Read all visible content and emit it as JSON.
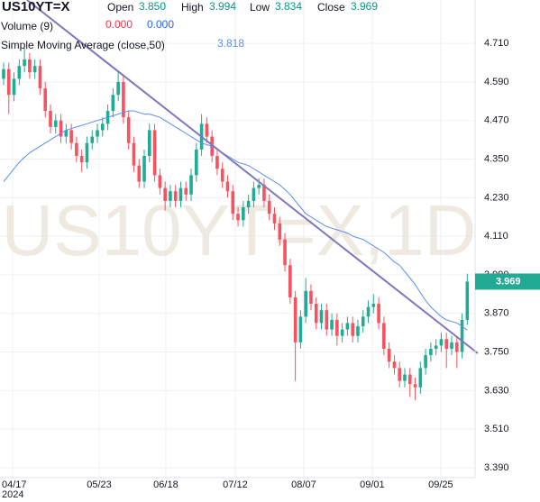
{
  "chart_data": {
    "type": "candlestick",
    "title": "US10YT=X",
    "watermark": "US10YT=X,1D",
    "header": {
      "open_label": "Open",
      "open": {
        "value": 3.85,
        "label": "3.850"
      },
      "high_label": "High",
      "high": 3.994,
      "low_label": "Low",
      "low": 3.834,
      "close_label": "Close",
      "close": 3.969,
      "volume_label": "Volume (9)",
      "volume_values": [
        {
          "value": 0,
          "label": "0.000",
          "color": "#f23645"
        },
        {
          "value": 0,
          "label": "0.000",
          "color": "#2962ff"
        }
      ]
    },
    "up_color": "#22ab94",
    "down_color": "#f7525f",
    "open": [
      4.6,
      4.63,
      4.55,
      4.6,
      4.64,
      4.66,
      4.62,
      4.64,
      4.57,
      4.5,
      4.45,
      4.47,
      4.42,
      4.44,
      4.4,
      4.36,
      4.34,
      4.4,
      4.42,
      4.44,
      4.46,
      4.5,
      4.55,
      4.59,
      4.48,
      4.4,
      4.33,
      4.28,
      4.36,
      4.44,
      4.3,
      4.26,
      4.22,
      4.25,
      4.22,
      4.26,
      4.24,
      4.3,
      4.38,
      4.46,
      4.42,
      4.36,
      4.32,
      4.28,
      4.25,
      4.18,
      4.16,
      4.2,
      4.22,
      4.26,
      4.27,
      4.22,
      4.18,
      4.15,
      4.1,
      4.02,
      3.92,
      3.78,
      3.86,
      3.94,
      3.9,
      3.84,
      3.88,
      3.82,
      3.85,
      3.8,
      3.82,
      3.84,
      3.8,
      3.83,
      3.86,
      3.89,
      3.9,
      3.84,
      3.76,
      3.72,
      3.7,
      3.66,
      3.68,
      3.65,
      3.64,
      3.7,
      3.74,
      3.76,
      3.77,
      3.79,
      3.76,
      3.78,
      3.75,
      3.85
    ],
    "high": [
      4.65,
      4.65,
      4.62,
      4.66,
      4.7,
      4.68,
      4.66,
      4.66,
      4.59,
      4.52,
      4.49,
      4.49,
      4.46,
      4.46,
      4.42,
      4.38,
      4.42,
      4.44,
      4.46,
      4.48,
      4.52,
      4.57,
      4.62,
      4.61,
      4.5,
      4.42,
      4.35,
      4.38,
      4.46,
      4.46,
      4.32,
      4.28,
      4.27,
      4.27,
      4.28,
      4.28,
      4.32,
      4.4,
      4.49,
      4.48,
      4.44,
      4.38,
      4.34,
      4.3,
      4.27,
      4.2,
      4.22,
      4.24,
      4.28,
      4.29,
      4.29,
      4.24,
      4.2,
      4.17,
      4.12,
      4.04,
      3.94,
      3.88,
      3.98,
      3.96,
      3.92,
      3.9,
      3.9,
      3.87,
      3.87,
      3.84,
      3.86,
      3.86,
      3.85,
      3.88,
      3.91,
      3.93,
      3.92,
      3.86,
      3.78,
      3.74,
      3.72,
      3.7,
      3.7,
      3.67,
      3.72,
      3.76,
      3.78,
      3.79,
      3.81,
      3.81,
      3.8,
      3.8,
      3.87,
      3.994
    ],
    "low": [
      4.58,
      4.49,
      4.53,
      4.58,
      4.62,
      4.6,
      4.6,
      4.55,
      4.48,
      4.43,
      4.43,
      4.4,
      4.4,
      4.38,
      4.34,
      4.31,
      4.32,
      4.38,
      4.4,
      4.42,
      4.44,
      4.48,
      4.53,
      4.46,
      4.38,
      4.31,
      4.26,
      4.26,
      4.34,
      4.28,
      4.24,
      4.19,
      4.2,
      4.2,
      4.2,
      4.22,
      4.22,
      4.28,
      4.36,
      4.4,
      4.34,
      4.3,
      4.26,
      4.23,
      4.16,
      4.14,
      4.14,
      4.18,
      4.2,
      4.24,
      4.2,
      4.16,
      4.13,
      4.08,
      4.0,
      3.9,
      3.66,
      3.76,
      3.84,
      3.88,
      3.82,
      3.82,
      3.8,
      3.8,
      3.77,
      3.78,
      3.8,
      3.78,
      3.78,
      3.81,
      3.84,
      3.87,
      3.82,
      3.74,
      3.7,
      3.68,
      3.64,
      3.64,
      3.61,
      3.6,
      3.62,
      3.68,
      3.72,
      3.74,
      3.75,
      3.7,
      3.74,
      3.7,
      3.73,
      3.834
    ],
    "close": [
      4.63,
      4.55,
      4.6,
      4.64,
      4.66,
      4.62,
      4.64,
      4.57,
      4.5,
      4.45,
      4.47,
      4.42,
      4.44,
      4.4,
      4.36,
      4.34,
      4.4,
      4.42,
      4.44,
      4.46,
      4.5,
      4.55,
      4.59,
      4.48,
      4.4,
      4.33,
      4.28,
      4.36,
      4.44,
      4.3,
      4.26,
      4.22,
      4.25,
      4.22,
      4.26,
      4.24,
      4.3,
      4.38,
      4.46,
      4.42,
      4.36,
      4.32,
      4.28,
      4.25,
      4.18,
      4.16,
      4.2,
      4.22,
      4.26,
      4.27,
      4.22,
      4.18,
      4.15,
      4.1,
      4.02,
      3.92,
      3.78,
      3.86,
      3.94,
      3.9,
      3.84,
      3.88,
      3.82,
      3.85,
      3.8,
      3.82,
      3.84,
      3.8,
      3.83,
      3.86,
      3.89,
      3.9,
      3.84,
      3.76,
      3.72,
      3.7,
      3.66,
      3.68,
      3.65,
      3.64,
      3.7,
      3.74,
      3.76,
      3.77,
      3.79,
      3.76,
      3.78,
      3.75,
      3.85,
      3.969
    ],
    "series": [
      {
        "name": "Simple Moving Average (close,50)",
        "color": "#5b8ff0",
        "last": 3.818,
        "values": [
          4.28,
          4.3,
          4.32,
          4.34,
          4.355,
          4.37,
          4.38,
          4.39,
          4.4,
          4.41,
          4.42,
          4.43,
          4.44,
          4.445,
          4.45,
          4.455,
          4.46,
          4.465,
          4.47,
          4.475,
          4.48,
          4.485,
          4.49,
          4.495,
          4.5,
          4.5,
          4.495,
          4.49,
          4.49,
          4.485,
          4.48,
          4.47,
          4.46,
          4.45,
          4.44,
          4.43,
          4.42,
          4.41,
          4.4,
          4.395,
          4.39,
          4.38,
          4.37,
          4.36,
          4.35,
          4.34,
          4.335,
          4.33,
          4.32,
          4.31,
          4.3,
          4.29,
          4.28,
          4.27,
          4.255,
          4.24,
          4.22,
          4.2,
          4.18,
          4.17,
          4.16,
          4.15,
          4.14,
          4.135,
          4.13,
          4.125,
          4.12,
          4.11,
          4.105,
          4.1,
          4.09,
          4.08,
          4.07,
          4.06,
          4.045,
          4.03,
          4.02,
          4.0,
          3.98,
          3.96,
          3.935,
          3.91,
          3.89,
          3.875,
          3.86,
          3.85,
          3.845,
          3.84,
          3.83,
          3.818
        ]
      }
    ],
    "price_tag": 3.969,
    "xlim": [
      -0.69,
      90.5
    ],
    "xticks": [
      {
        "value": 1.73,
        "label": "04/17"
      },
      {
        "value": 18.34,
        "label": "05/23"
      },
      {
        "value": 31.14,
        "label": "06/18"
      },
      {
        "value": 44.46,
        "label": "07/12"
      },
      {
        "value": 57.61,
        "label": "08/07"
      },
      {
        "value": 70.76,
        "label": "09/01"
      },
      {
        "value": 83.91,
        "label": "09/25"
      }
    ],
    "x_year_label": "2024",
    "ylim": [
      3.359,
      4.845
    ],
    "yticks": [
      {
        "value": 3.39,
        "label": "3.390"
      },
      {
        "value": 3.51,
        "label": "3.510"
      },
      {
        "value": 3.63,
        "label": "3.630"
      },
      {
        "value": 3.75,
        "label": "3.750"
      },
      {
        "value": 3.87,
        "label": "3.870"
      },
      {
        "value": 3.99,
        "label": "3.990"
      },
      {
        "value": 4.11,
        "label": "4.110"
      },
      {
        "value": 4.23,
        "label": "4.230"
      },
      {
        "value": 4.35,
        "label": "4.350"
      },
      {
        "value": 4.47,
        "label": "4.470"
      },
      {
        "value": 4.59,
        "label": "4.590"
      },
      {
        "value": 4.71,
        "label": "4.710"
      }
    ],
    "grid": true
  }
}
